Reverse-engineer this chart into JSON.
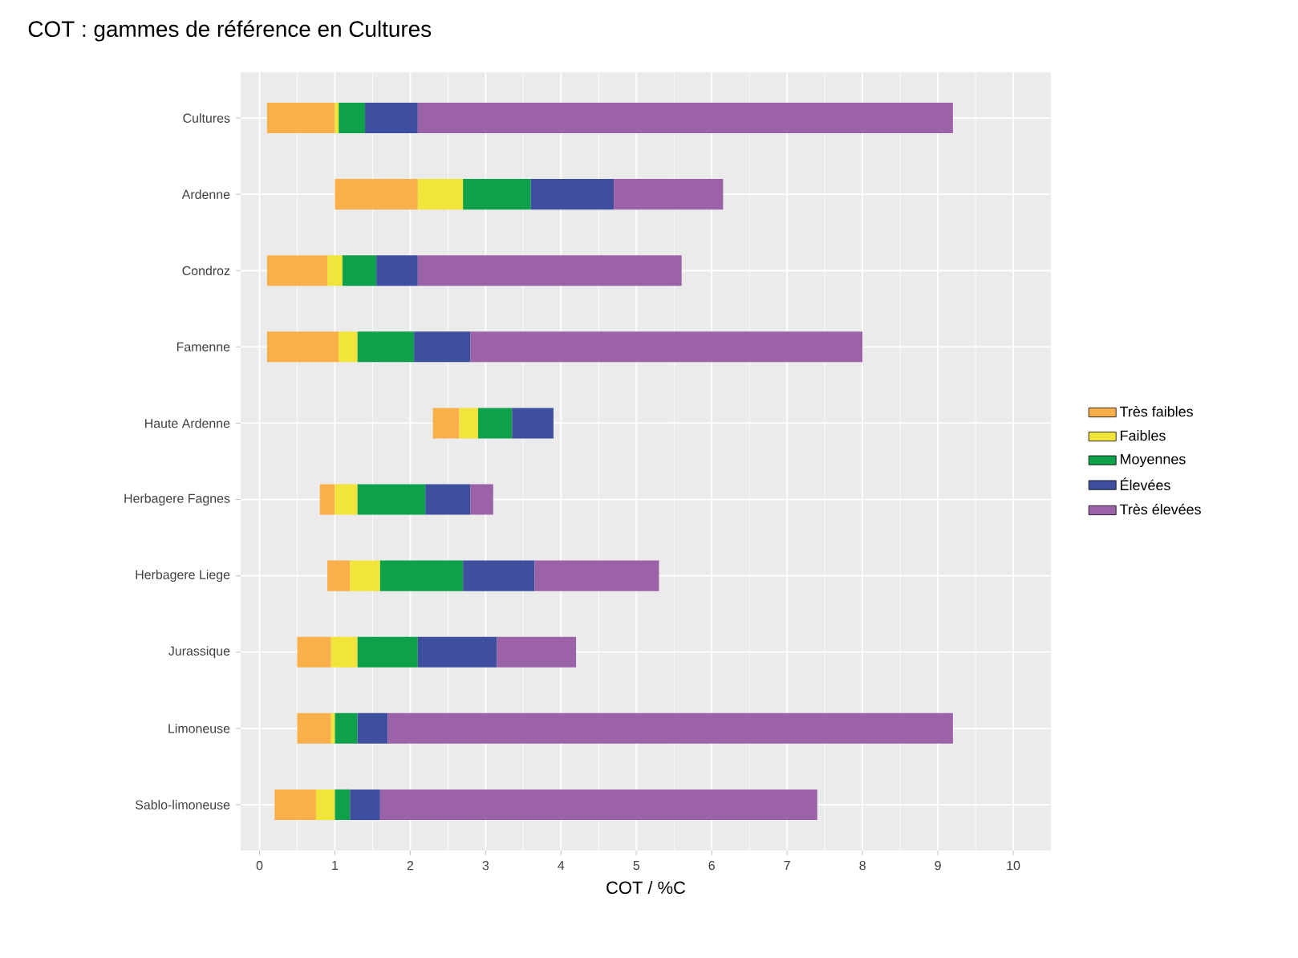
{
  "chart_data": {
    "type": "bar",
    "orientation": "horizontal",
    "title": "COT : gammes de référence en Cultures",
    "xlabel": "COT / %C",
    "categories": [
      "Cultures",
      "Ardenne",
      "Condroz",
      "Famenne",
      "Haute Ardenne",
      "Herbagere Fagnes",
      "Herbagere Liege",
      "Jurassique",
      "Limoneuse",
      "Sablo-limoneuse"
    ],
    "series": [
      {
        "name": "Très faibles",
        "color": "#f9b04a",
        "base": [
          0.1,
          1.0,
          0.1,
          0.1,
          2.3,
          0.8,
          0.9,
          0.5,
          0.5,
          0.2
        ],
        "values": [
          0.9,
          1.1,
          0.8,
          0.95,
          0.35,
          0.2,
          0.3,
          0.45,
          0.45,
          0.55
        ]
      },
      {
        "name": "Faibles",
        "color": "#f1e43a",
        "base": [
          1.0,
          2.1,
          0.9,
          1.05,
          2.65,
          1.0,
          1.2,
          0.95,
          0.95,
          0.75
        ],
        "values": [
          0.05,
          0.6,
          0.2,
          0.25,
          0.25,
          0.3,
          0.4,
          0.35,
          0.05,
          0.25
        ]
      },
      {
        "name": "Moyennes",
        "color": "#0fa04a",
        "base": [
          1.05,
          2.7,
          1.1,
          1.3,
          2.9,
          1.3,
          1.6,
          1.3,
          1.0,
          1.0
        ],
        "values": [
          0.35,
          0.9,
          0.45,
          0.75,
          0.45,
          0.9,
          1.1,
          0.8,
          0.3,
          0.2
        ]
      },
      {
        "name": "Élevées",
        "color": "#3f4fa0",
        "base": [
          1.4,
          3.6,
          1.55,
          2.05,
          3.35,
          2.2,
          2.7,
          2.1,
          1.3,
          1.2
        ],
        "values": [
          0.7,
          1.1,
          0.55,
          0.75,
          0.55,
          0.6,
          0.95,
          1.05,
          0.4,
          0.4
        ]
      },
      {
        "name": "Très élevées",
        "color": "#9c62a8",
        "base": [
          2.1,
          4.7,
          2.1,
          2.8,
          null,
          2.8,
          3.65,
          3.15,
          1.7,
          1.6
        ],
        "values": [
          7.1,
          1.45,
          3.5,
          5.2,
          null,
          0.3,
          1.65,
          1.05,
          7.5,
          5.8
        ]
      }
    ],
    "xlim": [
      -0.25,
      10.5
    ],
    "xticks": [
      0,
      1,
      2,
      3,
      4,
      5,
      6,
      7,
      8,
      9,
      10
    ],
    "grid": true,
    "legend": "right"
  }
}
